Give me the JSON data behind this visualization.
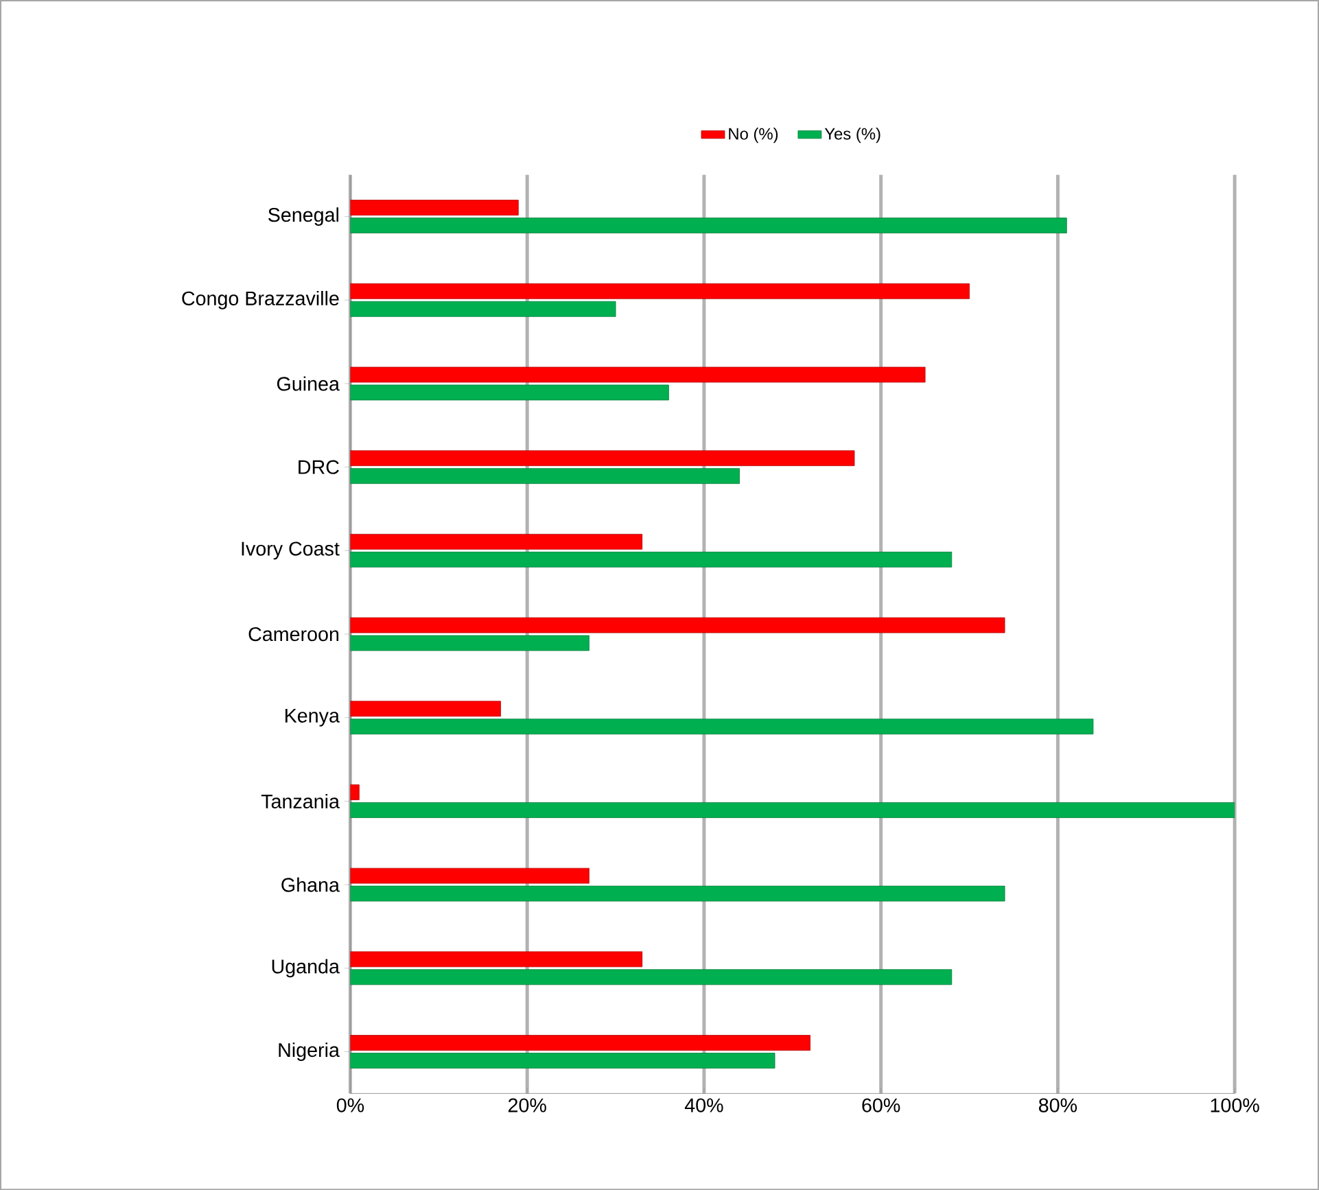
{
  "chart_data": {
    "type": "bar",
    "orientation": "horizontal",
    "categories": [
      "Senegal",
      "Congo Brazzaville",
      "Guinea",
      "DRC",
      "Ivory Coast",
      "Cameroon",
      "Kenya",
      "Tanzania",
      "Ghana",
      "Uganda",
      "Nigeria"
    ],
    "series": [
      {
        "name": "No (%)",
        "color": "#ff0000",
        "values": [
          19,
          70,
          65,
          57,
          33,
          74,
          17,
          1,
          27,
          33,
          52
        ]
      },
      {
        "name": "Yes (%)",
        "color": "#00b050",
        "values": [
          81,
          30,
          36,
          44,
          68,
          27,
          84,
          100,
          74,
          68,
          48
        ]
      }
    ],
    "xlim": [
      0,
      100
    ],
    "xticks": [
      {
        "value": 0,
        "label": "0%"
      },
      {
        "value": 20,
        "label": "20%"
      },
      {
        "value": 40,
        "label": "40%"
      },
      {
        "value": 60,
        "label": "60%"
      },
      {
        "value": 80,
        "label": "80%"
      },
      {
        "value": 100,
        "label": "100%"
      }
    ],
    "grid": "x",
    "legend": "top"
  }
}
